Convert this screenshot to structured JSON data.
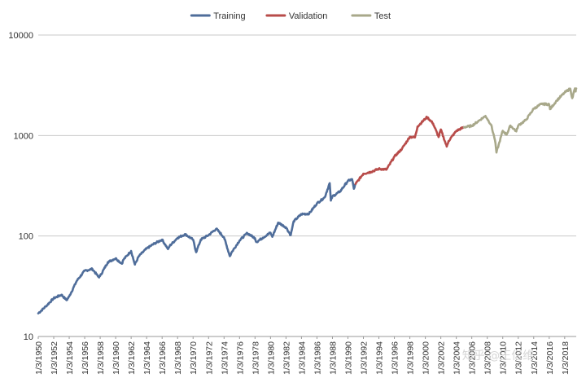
{
  "chart_data": {
    "type": "line",
    "title": "",
    "xlabel": "",
    "ylabel": "",
    "yscale": "log",
    "ylim": [
      10,
      10000
    ],
    "xlim": [
      "1950-01-03",
      "2019-06-30"
    ],
    "grid": true,
    "legend_position": "top-center",
    "y_ticks": [
      "10",
      "100",
      "1000",
      "10000"
    ],
    "x_ticks": [
      "1/3/1950",
      "1/3/1952",
      "1/3/1954",
      "1/3/1956",
      "1/3/1958",
      "1/3/1960",
      "1/3/1962",
      "1/3/1964",
      "1/3/1966",
      "1/3/1968",
      "1/3/1970",
      "1/3/1972",
      "1/3/1974",
      "1/3/1976",
      "1/3/1978",
      "1/3/1980",
      "1/3/1982",
      "1/3/1984",
      "1/3/1986",
      "1/3/1988",
      "1/3/1990",
      "1/3/1992",
      "1/3/1994",
      "1/3/1996",
      "1/3/1998",
      "1/3/2000",
      "1/3/2002",
      "1/3/2004",
      "1/3/2006",
      "1/3/2008",
      "1/3/2010",
      "1/3/2012",
      "1/3/2014",
      "1/3/2016",
      "1/3/2018"
    ],
    "series": [
      {
        "name": "Training",
        "color": "#4f6d9a",
        "points": [
          [
            "1950-01-03",
            17
          ],
          [
            "1950-12-31",
            20
          ],
          [
            "1951-12-31",
            24
          ],
          [
            "1952-12-31",
            26
          ],
          [
            "1953-09-01",
            23
          ],
          [
            "1953-12-31",
            25
          ],
          [
            "1954-12-31",
            36
          ],
          [
            "1955-12-31",
            45
          ],
          [
            "1956-12-31",
            47
          ],
          [
            "1957-10-22",
            39
          ],
          [
            "1957-12-31",
            40
          ],
          [
            "1958-12-31",
            55
          ],
          [
            "1959-12-31",
            60
          ],
          [
            "1960-10-25",
            53
          ],
          [
            "1960-12-31",
            58
          ],
          [
            "1961-12-31",
            71
          ],
          [
            "1962-06-26",
            52
          ],
          [
            "1962-12-31",
            63
          ],
          [
            "1963-12-31",
            75
          ],
          [
            "1964-12-31",
            84
          ],
          [
            "1965-12-31",
            92
          ],
          [
            "1966-10-07",
            74
          ],
          [
            "1966-12-31",
            80
          ],
          [
            "1967-12-31",
            96
          ],
          [
            "1968-12-31",
            104
          ],
          [
            "1969-12-31",
            92
          ],
          [
            "1970-05-26",
            69
          ],
          [
            "1970-12-31",
            92
          ],
          [
            "1971-12-31",
            102
          ],
          [
            "1972-12-31",
            118
          ],
          [
            "1973-12-31",
            97
          ],
          [
            "1974-10-03",
            63
          ],
          [
            "1974-12-31",
            69
          ],
          [
            "1975-12-31",
            90
          ],
          [
            "1976-12-31",
            107
          ],
          [
            "1977-12-31",
            95
          ],
          [
            "1978-03-06",
            87
          ],
          [
            "1978-12-31",
            96
          ],
          [
            "1979-12-31",
            108
          ],
          [
            "1980-03-27",
            98
          ],
          [
            "1980-12-31",
            136
          ],
          [
            "1981-12-31",
            122
          ],
          [
            "1982-08-12",
            102
          ],
          [
            "1982-12-31",
            140
          ],
          [
            "1983-12-31",
            165
          ],
          [
            "1984-12-31",
            167
          ],
          [
            "1985-12-31",
            211
          ],
          [
            "1986-12-31",
            242
          ],
          [
            "1987-08-25",
            336
          ],
          [
            "1987-10-20",
            225
          ],
          [
            "1987-12-31",
            247
          ],
          [
            "1988-12-31",
            278
          ],
          [
            "1989-12-31",
            353
          ],
          [
            "1990-07-16",
            368
          ],
          [
            "1990-10-11",
            295
          ],
          [
            "1990-12-31",
            330
          ]
        ]
      },
      {
        "name": "Validation",
        "color": "#b84c4a",
        "points": [
          [
            "1990-12-31",
            330
          ],
          [
            "1991-12-31",
            417
          ],
          [
            "1992-12-31",
            435
          ],
          [
            "1993-12-31",
            466
          ],
          [
            "1994-12-31",
            459
          ],
          [
            "1995-12-31",
            615
          ],
          [
            "1996-12-31",
            740
          ],
          [
            "1997-12-31",
            970
          ],
          [
            "1998-08-31",
            957
          ],
          [
            "1998-12-31",
            1229
          ],
          [
            "1999-12-31",
            1469
          ],
          [
            "2000-03-24",
            1527
          ],
          [
            "2000-12-31",
            1320
          ],
          [
            "2001-09-21",
            965
          ],
          [
            "2001-12-31",
            1148
          ],
          [
            "2002-10-09",
            776
          ],
          [
            "2002-12-31",
            879
          ],
          [
            "2003-12-31",
            1111
          ],
          [
            "2004-12-31",
            1211
          ]
        ]
      },
      {
        "name": "Test",
        "color": "#a8a88a",
        "points": [
          [
            "2004-12-31",
            1211
          ],
          [
            "2005-12-31",
            1248
          ],
          [
            "2006-12-31",
            1418
          ],
          [
            "2007-10-09",
            1565
          ],
          [
            "2007-12-31",
            1468
          ],
          [
            "2008-06-30",
            1280
          ],
          [
            "2008-12-31",
            903
          ],
          [
            "2009-03-09",
            677
          ],
          [
            "2009-12-31",
            1115
          ],
          [
            "2010-07-02",
            1022
          ],
          [
            "2010-12-31",
            1257
          ],
          [
            "2011-10-03",
            1099
          ],
          [
            "2011-12-31",
            1257
          ],
          [
            "2012-12-31",
            1426
          ],
          [
            "2013-12-31",
            1848
          ],
          [
            "2014-12-31",
            2058
          ],
          [
            "2015-12-31",
            2043
          ],
          [
            "2016-02-11",
            1829
          ],
          [
            "2016-12-31",
            2238
          ],
          [
            "2017-12-31",
            2673
          ],
          [
            "2018-09-20",
            2930
          ],
          [
            "2018-12-24",
            2351
          ],
          [
            "2019-04-30",
            2945
          ],
          [
            "2019-06-03",
            2744
          ],
          [
            "2019-06-30",
            2941
          ]
        ]
      }
    ]
  },
  "watermark": {
    "text": "知乎 @王亿维"
  }
}
